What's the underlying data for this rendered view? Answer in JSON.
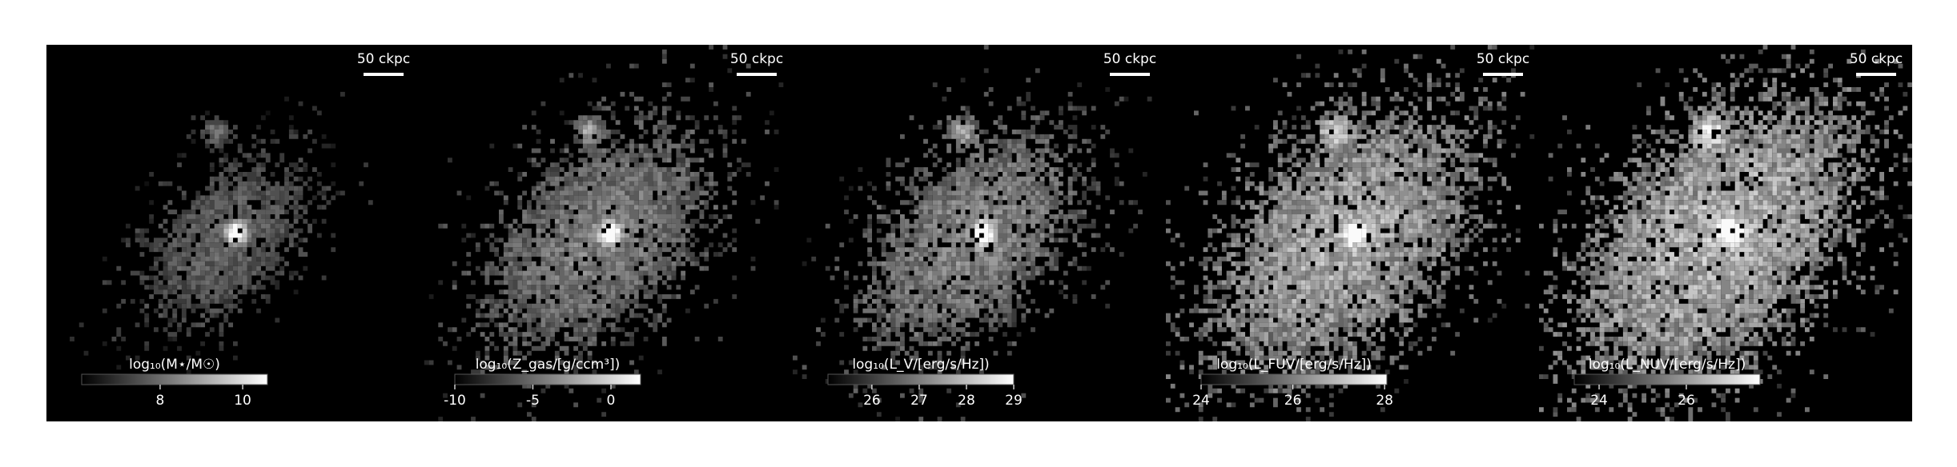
{
  "chart_data": [
    {
      "type": "image",
      "scalebar_label": "50 ckpc",
      "colorbar_label": "log₁₀(M⋆/M☉)",
      "clim": [
        6.1,
        10.6
      ],
      "cticks": [
        8,
        10
      ],
      "cmap": [
        "#000000",
        "#ffffff"
      ]
    },
    {
      "type": "image",
      "scalebar_label": "50 ckpc",
      "colorbar_label": "log₁₀(Z_gas/[g/ccm³])",
      "clim": [
        -10,
        1.9
      ],
      "cticks": [
        -10,
        -5,
        0
      ],
      "cmap": [
        "#000000",
        "#ffffff"
      ]
    },
    {
      "type": "image",
      "scalebar_label": "50 ckpc",
      "colorbar_label": "log₁₀(L_V/[erg/s/Hz])",
      "clim": [
        25.07,
        29
      ],
      "cticks": [
        26,
        27,
        28,
        29
      ],
      "cmap": [
        "#000000",
        "#ffffff"
      ]
    },
    {
      "type": "image",
      "scalebar_label": "50 ckpc",
      "colorbar_label": "log₁₀(L_FUV/[erg/s/Hz])",
      "clim": [
        24,
        28.05
      ],
      "cticks": [
        24,
        26,
        28
      ],
      "cmap": [
        "#000000",
        "#ffffff"
      ]
    },
    {
      "type": "image",
      "scalebar_label": "50 ckpc",
      "colorbar_label": "log₁₀(L_NUV/[erg/s/Hz])",
      "clim": [
        23.43,
        27.69
      ],
      "cticks": [
        24,
        26
      ],
      "cmap": [
        "#000000",
        "#ffffff"
      ]
    }
  ]
}
